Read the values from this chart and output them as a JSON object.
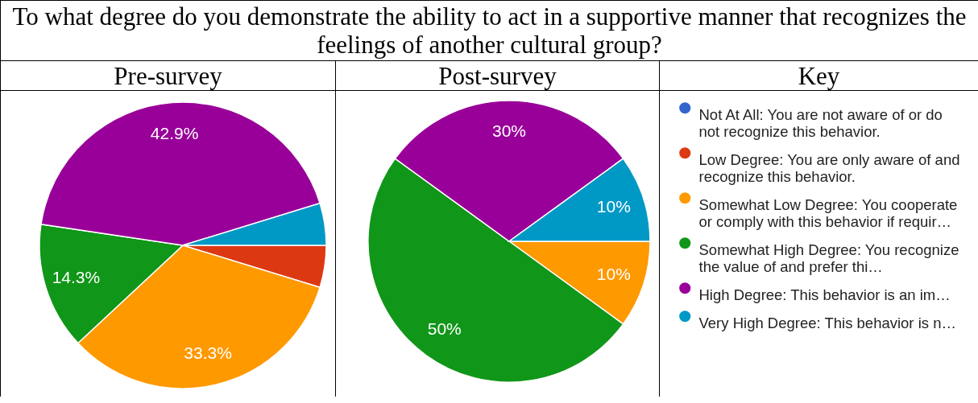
{
  "chart_data": [
    {
      "type": "pie",
      "title": "To what degree do you demonstrate the ability to act in a supportive manner that recognizes the feelings of another cultural group?",
      "subtitle": "Pre-survey",
      "categories": [
        null,
        null,
        null,
        null,
        null,
        null
      ],
      "values": [
        0,
        4.75,
        33.3,
        14.3,
        42.9,
        4.75
      ],
      "colors": [
        "#3366cc",
        "#dc3912",
        "#ff9900",
        "#109618",
        "#990099",
        "#0099c6"
      ],
      "value_labels": [
        null,
        null,
        "33.3%",
        "14.3%",
        "42.9%",
        null
      ]
    },
    {
      "type": "pie",
      "title": "Post-survey",
      "legend_title": "Key",
      "legend": "right",
      "categories": [
        "Not At All: You are not aware of or do not recognize this behavior.",
        "Low Degree: You are only aware of and recognize this behavior.",
        "Somewhat Low Degree: You cooperate or comply with this behavior if requir…",
        "Somewhat High Degree: You recognize the value of and prefer thi…",
        "High Degree: This behavior is an im…",
        "Very High Degree: This behavior is n…"
      ],
      "values": [
        0,
        0,
        10,
        50,
        30,
        10
      ],
      "colors": [
        "#3366cc",
        "#dc3912",
        "#ff9900",
        "#109618",
        "#990099",
        "#0099c6"
      ],
      "value_labels": [
        null,
        null,
        "10%",
        "50%",
        "30%",
        "10%"
      ]
    }
  ]
}
